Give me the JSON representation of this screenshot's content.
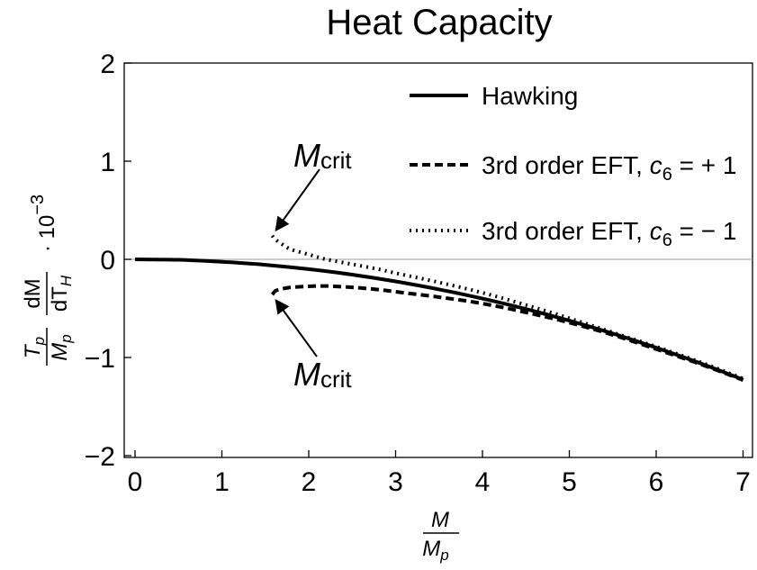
{
  "chart_data": {
    "type": "line",
    "title": "Heat Capacity",
    "xlabel": {
      "numerator": "M",
      "denominator": "M",
      "denominator_sub": "p"
    },
    "ylabel": {
      "frac1_num": "T",
      "frac1_num_sub": "p",
      "frac1_den": "M",
      "frac1_den_sub": "p",
      "frac2_num": "dM",
      "frac2_den": "dT",
      "frac2_den_sub": "H",
      "scale": "· 10",
      "scale_exp": "−3"
    },
    "xlim": [
      0,
      7
    ],
    "ylim": [
      -2,
      2
    ],
    "x_ticks": [
      0,
      1,
      2,
      3,
      4,
      5,
      6,
      7
    ],
    "x_tick_labels": [
      "0",
      "1",
      "2",
      "3",
      "4",
      "5",
      "6",
      "7"
    ],
    "y_ticks": [
      -2,
      -1,
      0,
      1,
      2
    ],
    "y_tick_labels": [
      "−2",
      "−1",
      "0",
      "1",
      "2"
    ],
    "legend": [
      {
        "label": "Hawking",
        "style": "solid"
      },
      {
        "label_prefix": "3rd order EFT, ",
        "var": "c",
        "sub": "6",
        "label_suffix": " = + 1",
        "style": "dashed"
      },
      {
        "label_prefix": "3rd order EFT, ",
        "var": "c",
        "sub": "6",
        "label_suffix": " = − 1",
        "style": "dotted"
      }
    ],
    "series": [
      {
        "name": "Hawking",
        "style": "solid",
        "points": [
          [
            0,
            0
          ],
          [
            0.5,
            -0.005
          ],
          [
            1,
            -0.025
          ],
          [
            1.5,
            -0.056
          ],
          [
            2,
            -0.1
          ],
          [
            2.5,
            -0.156
          ],
          [
            3,
            -0.225
          ],
          [
            3.5,
            -0.306
          ],
          [
            4,
            -0.4
          ],
          [
            4.5,
            -0.506
          ],
          [
            5,
            -0.625
          ],
          [
            5.5,
            -0.756
          ],
          [
            6,
            -0.9
          ],
          [
            6.5,
            -1.056
          ],
          [
            7,
            -1.225
          ]
        ]
      },
      {
        "name": "3rd order EFT, c6 = +1",
        "style": "dashed",
        "points": [
          [
            1.58,
            -0.36
          ],
          [
            1.62,
            -0.32
          ],
          [
            1.7,
            -0.3
          ],
          [
            1.8,
            -0.285
          ],
          [
            2,
            -0.275
          ],
          [
            2.2,
            -0.272
          ],
          [
            2.5,
            -0.285
          ],
          [
            2.8,
            -0.308
          ],
          [
            3,
            -0.33
          ],
          [
            3.5,
            -0.385
          ],
          [
            4,
            -0.45
          ],
          [
            4.5,
            -0.54
          ],
          [
            5,
            -0.645
          ],
          [
            5.5,
            -0.77
          ],
          [
            6,
            -0.915
          ],
          [
            6.5,
            -1.065
          ],
          [
            7,
            -1.23
          ]
        ]
      },
      {
        "name": "3rd order EFT, c6 = -1",
        "style": "dotted",
        "points": [
          [
            1.58,
            0.24
          ],
          [
            1.62,
            0.2
          ],
          [
            1.7,
            0.15
          ],
          [
            1.8,
            0.1
          ],
          [
            2,
            0.05
          ],
          [
            2.2,
            0.0
          ],
          [
            2.5,
            -0.05
          ],
          [
            2.8,
            -0.1
          ],
          [
            3,
            -0.14
          ],
          [
            3.5,
            -0.235
          ],
          [
            4,
            -0.34
          ],
          [
            4.5,
            -0.465
          ],
          [
            5,
            -0.6
          ],
          [
            5.5,
            -0.745
          ],
          [
            6,
            -0.89
          ],
          [
            6.5,
            -1.045
          ],
          [
            7,
            -1.215
          ]
        ]
      }
    ],
    "annotations": [
      {
        "text": "M",
        "sub": "crit",
        "target": [
          1.58,
          0.24
        ],
        "position": "upper"
      },
      {
        "text": "M",
        "sub": "crit",
        "target": [
          1.58,
          -0.36
        ],
        "position": "lower"
      }
    ]
  }
}
